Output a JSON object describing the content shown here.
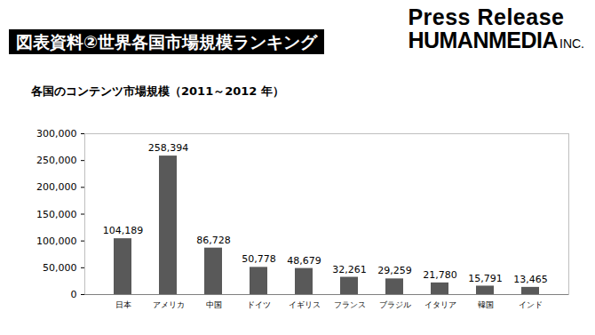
{
  "header": {
    "title": "図表資料②世界各国市場規模ランキング",
    "logo": {
      "line1": "Press Release",
      "line2": "HUMANMEDIA",
      "suffix": "INC."
    }
  },
  "chart_data": {
    "type": "bar",
    "title": "各国のコンテンツ市場規模（2011～2012 年）",
    "categories": [
      "日本",
      "アメリカ",
      "中国",
      "ドイツ",
      "イギリス",
      "フランス",
      "ブラジル",
      "イタリア",
      "韓国",
      "インド"
    ],
    "values": [
      104189,
      258394,
      86728,
      50778,
      48679,
      32261,
      29259,
      21780,
      15791,
      13465
    ],
    "value_labels": [
      "104,189",
      "258,394",
      "86,728",
      "50,778",
      "48,679",
      "32,261",
      "29,259",
      "21,780",
      "15,791",
      "13,465"
    ],
    "data_labels": true,
    "color": "#595959",
    "ylim": [
      0,
      300000
    ],
    "yticks": [
      0,
      {
        "value": 50000,
        "label": "50,000"
      },
      {
        "value": 100000,
        "label": "100,000"
      },
      {
        "value": 150000,
        "label": "150,000"
      },
      {
        "value": 200000,
        "label": "200,000"
      },
      {
        "value": 250000,
        "label": "250,000"
      },
      {
        "value": 300000,
        "label": "300,000"
      }
    ],
    "grid": false
  }
}
